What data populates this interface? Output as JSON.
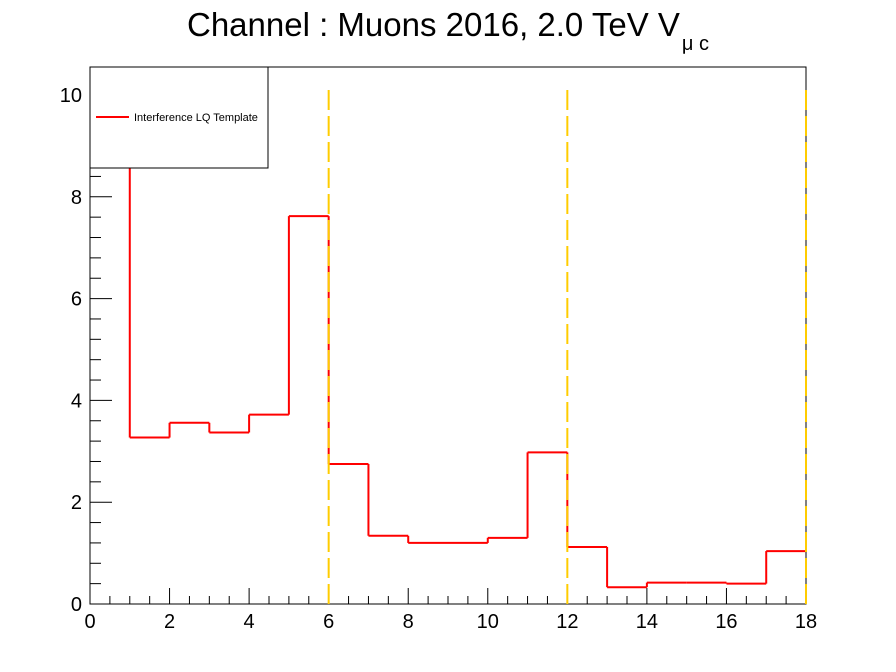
{
  "chart_data": {
    "type": "step",
    "title": {
      "main": "Channel : Muons 2016, 2.0 TeV V",
      "subscript": "μ c"
    },
    "xlabel": "",
    "ylabel": "",
    "xlim": [
      0,
      18
    ],
    "ylim": [
      0,
      10.55
    ],
    "xticks": [
      0,
      2,
      4,
      6,
      8,
      10,
      12,
      14,
      16,
      18
    ],
    "yticks": [
      0,
      2,
      4,
      6,
      8,
      10
    ],
    "grid": false,
    "legend": {
      "placement": "top-left"
    },
    "series": [
      {
        "name": "Interference LQ Template",
        "color": "#ff0000",
        "bin_edges": [
          1,
          2,
          3,
          4,
          5,
          6,
          7,
          8,
          9,
          10,
          11,
          12,
          13,
          14,
          15,
          16,
          17,
          18
        ],
        "values": [
          3.27,
          3.56,
          3.37,
          3.72,
          7.62,
          2.75,
          1.34,
          1.2,
          1.2,
          1.3,
          2.98,
          1.12,
          0.33,
          0.42,
          0.42,
          0.4,
          1.04
        ]
      }
    ],
    "reference_lines": {
      "color": "#ffcc00",
      "x": [
        6,
        12,
        18
      ],
      "top": 10.1
    }
  }
}
